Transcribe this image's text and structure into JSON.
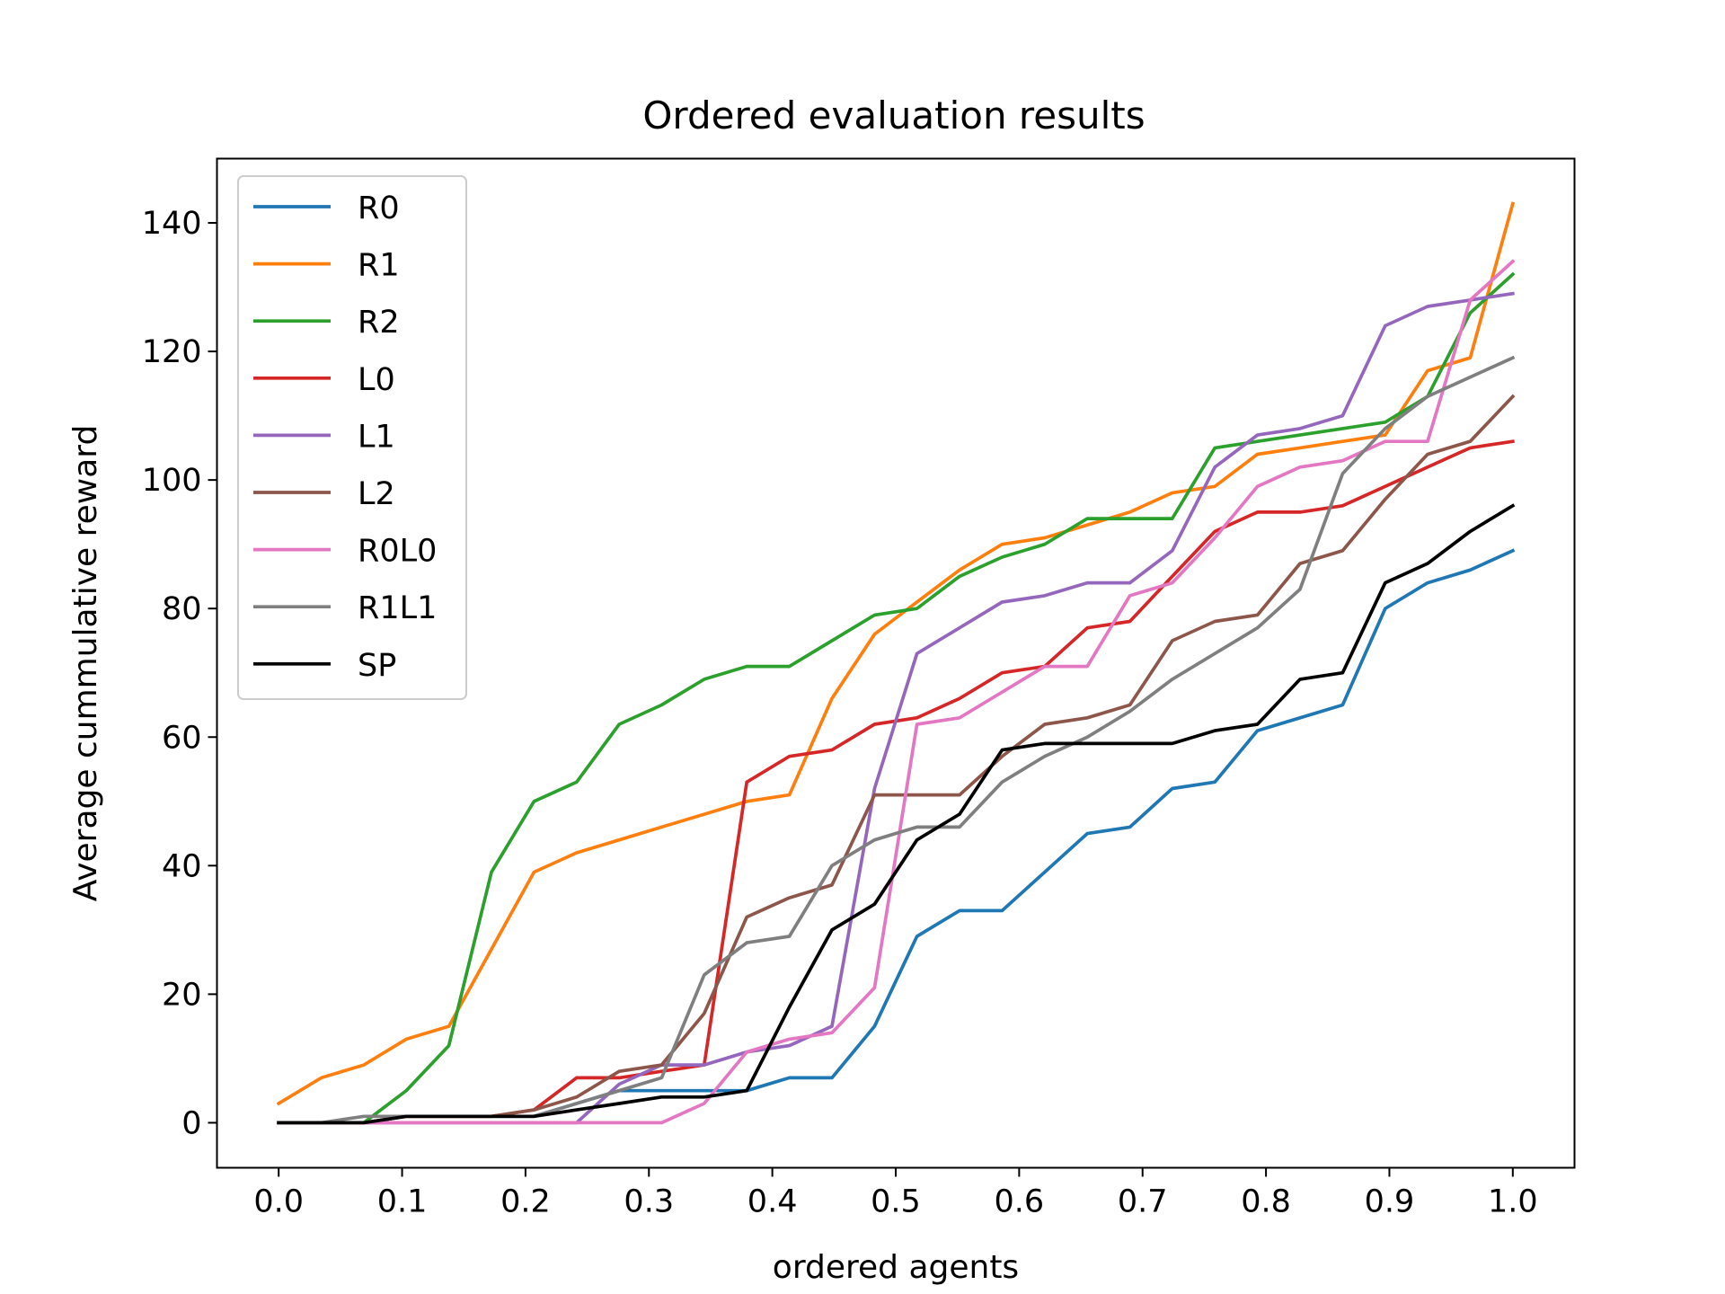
{
  "chart_data": {
    "type": "line",
    "title": "Ordered evaluation results",
    "xlabel": "ordered agents",
    "ylabel": "Average cummulative reward",
    "xlim": [
      -0.05,
      1.05
    ],
    "ylim": [
      -7,
      150
    ],
    "xticks": [
      "0.0",
      "0.1",
      "0.2",
      "0.3",
      "0.4",
      "0.5",
      "0.6",
      "0.7",
      "0.8",
      "0.9",
      "1.0"
    ],
    "yticks": [
      "0",
      "20",
      "40",
      "60",
      "80",
      "100",
      "120",
      "140"
    ],
    "grid": false,
    "legend_position": "upper-left",
    "x": [
      0.0,
      0.0345,
      0.069,
      0.1034,
      0.1379,
      0.1724,
      0.2069,
      0.2414,
      0.2759,
      0.3103,
      0.3448,
      0.3793,
      0.4138,
      0.4483,
      0.4828,
      0.5172,
      0.5517,
      0.5862,
      0.6207,
      0.6552,
      0.6897,
      0.7241,
      0.7586,
      0.7931,
      0.8276,
      0.8621,
      0.8966,
      0.931,
      0.9655,
      1.0
    ],
    "series": [
      {
        "name": "R0",
        "color": "#1f77b4",
        "values": [
          0,
          0,
          0,
          1,
          1,
          1,
          1,
          3,
          5,
          5,
          5,
          5,
          7,
          7,
          15,
          29,
          33,
          33,
          39,
          45,
          46,
          52,
          53,
          61,
          63,
          65,
          80,
          84,
          86,
          89
        ]
      },
      {
        "name": "R1",
        "color": "#ff7f0e",
        "values": [
          3,
          7,
          9,
          13,
          15,
          27,
          39,
          42,
          44,
          46,
          48,
          50,
          51,
          66,
          76,
          81,
          86,
          90,
          91,
          93,
          95,
          98,
          99,
          104,
          105,
          106,
          107,
          117,
          119,
          143
        ]
      },
      {
        "name": "R2",
        "color": "#2ca02c",
        "values": [
          0,
          0,
          0,
          5,
          12,
          39,
          50,
          53,
          62,
          65,
          69,
          71,
          71,
          75,
          79,
          80,
          85,
          88,
          90,
          94,
          94,
          94,
          105,
          106,
          107,
          108,
          109,
          113,
          126,
          132
        ]
      },
      {
        "name": "L0",
        "color": "#d62728",
        "values": [
          0,
          0,
          0,
          1,
          1,
          1,
          2,
          7,
          7,
          8,
          9,
          53,
          57,
          58,
          62,
          63,
          66,
          70,
          71,
          77,
          78,
          85,
          92,
          95,
          95,
          96,
          99,
          102,
          105,
          106
        ]
      },
      {
        "name": "L1",
        "color": "#9467bd",
        "values": [
          0,
          0,
          0,
          0,
          0,
          0,
          0,
          0,
          6,
          9,
          9,
          11,
          12,
          15,
          52,
          73,
          77,
          81,
          82,
          84,
          84,
          89,
          102,
          107,
          108,
          110,
          124,
          127,
          128,
          129
        ]
      },
      {
        "name": "L2",
        "color": "#8c564b",
        "values": [
          0,
          0,
          0,
          1,
          1,
          1,
          2,
          4,
          8,
          9,
          17,
          32,
          35,
          37,
          51,
          51,
          51,
          57,
          62,
          63,
          65,
          75,
          78,
          79,
          87,
          89,
          97,
          104,
          106,
          113
        ]
      },
      {
        "name": "R0L0",
        "color": "#e377c2",
        "values": [
          0,
          0,
          0,
          0,
          0,
          0,
          0,
          0,
          0,
          0,
          3,
          11,
          13,
          14,
          21,
          62,
          63,
          67,
          71,
          71,
          82,
          84,
          91,
          99,
          102,
          103,
          106,
          106,
          128,
          134
        ]
      },
      {
        "name": "R1L1",
        "color": "#7f7f7f",
        "values": [
          0,
          0,
          1,
          1,
          1,
          1,
          1,
          3,
          5,
          7,
          23,
          28,
          29,
          40,
          44,
          46,
          46,
          53,
          57,
          60,
          64,
          69,
          73,
          77,
          83,
          101,
          108,
          113,
          116,
          119
        ]
      },
      {
        "name": "SP",
        "color": "#000000",
        "values": [
          0,
          0,
          0,
          1,
          1,
          1,
          1,
          2,
          3,
          4,
          4,
          5,
          18,
          30,
          34,
          44,
          48,
          58,
          59,
          59,
          59,
          59,
          61,
          62,
          69,
          70,
          84,
          87,
          92,
          96
        ]
      }
    ]
  }
}
